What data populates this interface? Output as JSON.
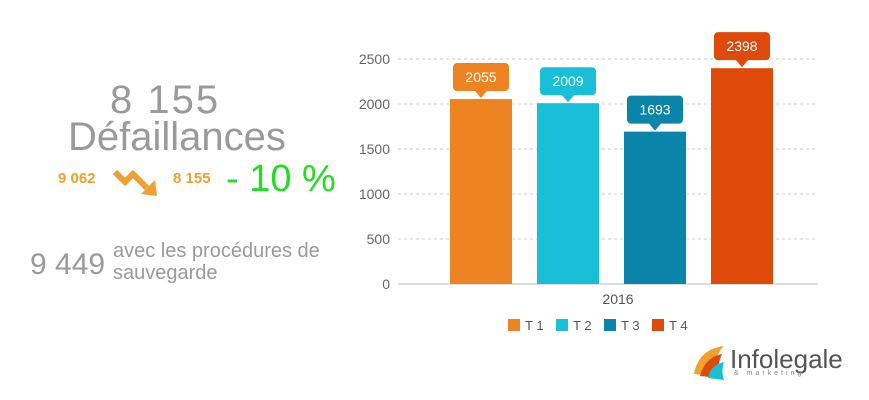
{
  "summary": {
    "total_value": "8 155",
    "total_label": "Défaillances",
    "previous_count": "9 062",
    "current_count": "8 155",
    "change_percent": "- 10 %",
    "alt_count": "9 449",
    "alt_label": "avec les procédures de sauvegarde"
  },
  "logo": {
    "name": "Infolegale",
    "tagline": "& marketing"
  },
  "colors": {
    "grey_text": "#9a9a9a",
    "orange_small": "#f0a030",
    "green": "#22dd22"
  },
  "chart_data": {
    "type": "bar",
    "title": "",
    "xlabel": "",
    "ylabel": "",
    "x_category": "2016",
    "categories": [
      "T 1",
      "T 2",
      "T 3",
      "T 4"
    ],
    "values": [
      2055,
      2009,
      1693,
      2398
    ],
    "colors": [
      "#ee8322",
      "#19bfd6",
      "#0a84a8",
      "#de4a0a"
    ],
    "ylim": [
      0,
      2500
    ],
    "yticks": [
      0,
      500,
      1000,
      1500,
      2000,
      2500
    ],
    "grid": true,
    "legend": "bottom",
    "data_labels": [
      "2055",
      "2009",
      "1693",
      "2398"
    ]
  }
}
